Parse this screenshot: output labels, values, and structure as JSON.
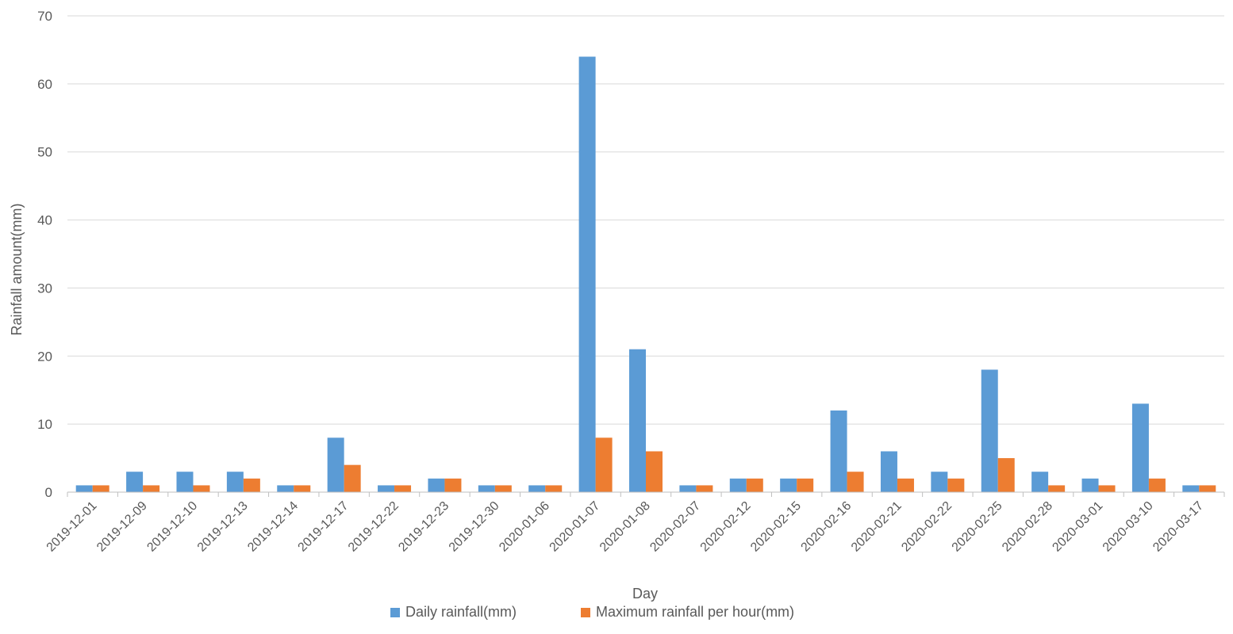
{
  "chart_data": {
    "type": "bar",
    "title": "",
    "xlabel": "Day",
    "ylabel": "Rainfall amount(mm)",
    "ylim": [
      0,
      70
    ],
    "yticks": [
      0,
      10,
      20,
      30,
      40,
      50,
      60,
      70
    ],
    "grid": true,
    "legend_position": "bottom",
    "categories": [
      "2019-12-01",
      "2019-12-09",
      "2019-12-10",
      "2019-12-13",
      "2019-12-14",
      "2019-12-17",
      "2019-12-22",
      "2019-12-23",
      "2019-12-30",
      "2020-01-06",
      "2020-01-07",
      "2020-01-08",
      "2020-02-07",
      "2020-02-12",
      "2020-02-15",
      "2020-02-16",
      "2020-02-21",
      "2020-02-22",
      "2020-02-25",
      "2020-02-28",
      "2020-03-01",
      "2020-03-10",
      "2020-03-17"
    ],
    "series": [
      {
        "name": "Daily rainfall(mm)",
        "color": "#5B9BD5",
        "values": [
          1,
          3,
          3,
          3,
          1,
          8,
          1,
          2,
          1,
          1,
          64,
          21,
          1,
          2,
          2,
          12,
          6,
          3,
          18,
          3,
          2,
          13,
          1
        ]
      },
      {
        "name": "Maximum rainfall per hour(mm)",
        "color": "#ED7D31",
        "values": [
          1,
          1,
          1,
          2,
          1,
          4,
          1,
          2,
          1,
          1,
          8,
          6,
          1,
          2,
          2,
          3,
          2,
          2,
          5,
          1,
          1,
          2,
          1
        ]
      }
    ]
  }
}
